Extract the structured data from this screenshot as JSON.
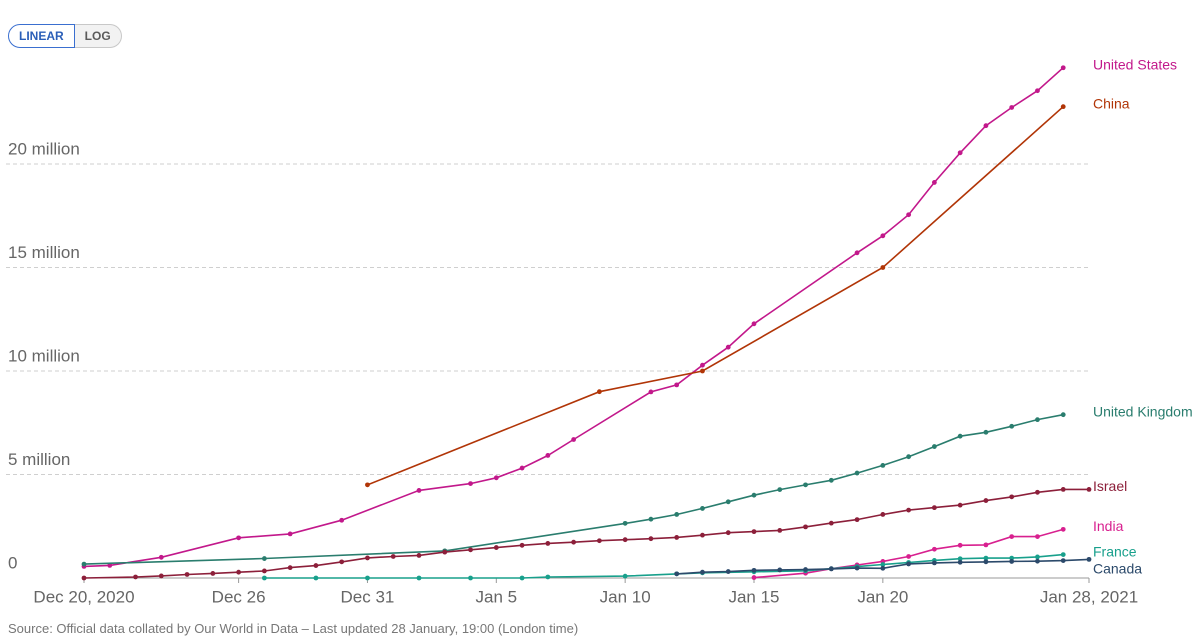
{
  "controls": {
    "linear": "LINEAR",
    "log": "LOG"
  },
  "chart_data": {
    "type": "line",
    "source": "Source: Official data collated by Our World in Data – Last updated 28 January, 19:00 (London time)",
    "xlim": [
      "2020-12-20",
      "2021-01-28"
    ],
    "xticks": [
      {
        "value": "2020-12-20",
        "label": "Dec 20, 2020"
      },
      {
        "value": "2020-12-26",
        "label": "Dec 26"
      },
      {
        "value": "2020-12-31",
        "label": "Dec 31"
      },
      {
        "value": "2021-01-05",
        "label": "Jan 5"
      },
      {
        "value": "2021-01-10",
        "label": "Jan 10"
      },
      {
        "value": "2021-01-15",
        "label": "Jan 15"
      },
      {
        "value": "2021-01-20",
        "label": "Jan 20"
      },
      {
        "value": "2021-01-28",
        "label": "Jan 28, 2021"
      }
    ],
    "ylim": [
      0,
      25000000
    ],
    "yticks": [
      0,
      {
        "value": 5000000,
        "label": "5 million"
      },
      {
        "value": 10000000,
        "label": "10 million"
      },
      {
        "value": 15000000,
        "label": "15 million"
      },
      {
        "value": 20000000,
        "label": "20 million"
      }
    ],
    "grid": true,
    "series": [
      {
        "name": "United States",
        "color": "#c2188b",
        "x": [
          "2020-12-20",
          "2020-12-21",
          "2020-12-23",
          "2020-12-26",
          "2020-12-28",
          "2020-12-30",
          "2021-01-02",
          "2021-01-04",
          "2021-01-05",
          "2021-01-06",
          "2021-01-07",
          "2021-01-08",
          "2021-01-11",
          "2021-01-12",
          "2021-01-13",
          "2021-01-14",
          "2021-01-15",
          "2021-01-19",
          "2021-01-20",
          "2021-01-21",
          "2021-01-22",
          "2021-01-23",
          "2021-01-24",
          "2021-01-25",
          "2021-01-26",
          "2021-01-27"
        ],
        "values": [
          560000,
          610000,
          1000000,
          1940000,
          2130000,
          2790000,
          4230000,
          4560000,
          4840000,
          5310000,
          5920000,
          6690000,
          8990000,
          9330000,
          10280000,
          11150000,
          12280000,
          15710000,
          16530000,
          17550000,
          19110000,
          20540000,
          21850000,
          22730000,
          23540000,
          24650000
        ]
      },
      {
        "name": "China",
        "color": "#b13507",
        "x": [
          "2020-12-31",
          "2021-01-09",
          "2021-01-13",
          "2021-01-20",
          "2021-01-27"
        ],
        "values": [
          4500000,
          9000000,
          10000000,
          15000000,
          22770000
        ]
      },
      {
        "name": "United Kingdom",
        "color": "#2a7d6e",
        "x": [
          "2020-12-20",
          "2020-12-27",
          "2021-01-03",
          "2021-01-10",
          "2021-01-11",
          "2021-01-12",
          "2021-01-13",
          "2021-01-14",
          "2021-01-15",
          "2021-01-16",
          "2021-01-17",
          "2021-01-18",
          "2021-01-19",
          "2021-01-20",
          "2021-01-21",
          "2021-01-22",
          "2021-01-23",
          "2021-01-24",
          "2021-01-25",
          "2021-01-26",
          "2021-01-27"
        ],
        "values": [
          670000,
          940000,
          1310000,
          2640000,
          2840000,
          3070000,
          3360000,
          3680000,
          4000000,
          4270000,
          4500000,
          4720000,
          5070000,
          5440000,
          5860000,
          6350000,
          6850000,
          7040000,
          7330000,
          7650000,
          7890000
        ]
      },
      {
        "name": "Israel",
        "color": "#8c1f3a",
        "x": [
          "2020-12-20",
          "2020-12-22",
          "2020-12-23",
          "2020-12-24",
          "2020-12-25",
          "2020-12-26",
          "2020-12-27",
          "2020-12-28",
          "2020-12-29",
          "2020-12-30",
          "2020-12-31",
          "2021-01-01",
          "2021-01-02",
          "2021-01-03",
          "2021-01-04",
          "2021-01-05",
          "2021-01-06",
          "2021-01-07",
          "2021-01-08",
          "2021-01-09",
          "2021-01-10",
          "2021-01-11",
          "2021-01-12",
          "2021-01-13",
          "2021-01-14",
          "2021-01-15",
          "2021-01-16",
          "2021-01-17",
          "2021-01-18",
          "2021-01-19",
          "2021-01-20",
          "2021-01-21",
          "2021-01-22",
          "2021-01-23",
          "2021-01-24",
          "2021-01-25",
          "2021-01-26",
          "2021-01-27",
          "2021-01-28"
        ],
        "values": [
          0,
          50000,
          100000,
          170000,
          220000,
          280000,
          340000,
          500000,
          600000,
          780000,
          970000,
          1040000,
          1090000,
          1250000,
          1360000,
          1470000,
          1580000,
          1670000,
          1730000,
          1800000,
          1850000,
          1900000,
          1960000,
          2070000,
          2190000,
          2240000,
          2300000,
          2470000,
          2650000,
          2820000,
          3070000,
          3280000,
          3400000,
          3520000,
          3740000,
          3920000,
          4140000,
          4280000,
          4280000
        ]
      },
      {
        "name": "India",
        "color": "#d8208f",
        "x": [
          "2021-01-15",
          "2021-01-17",
          "2021-01-18",
          "2021-01-19",
          "2021-01-20",
          "2021-01-21",
          "2021-01-22",
          "2021-01-23",
          "2021-01-24",
          "2021-01-25",
          "2021-01-26",
          "2021-01-27"
        ],
        "values": [
          20000,
          230000,
          450000,
          630000,
          800000,
          1040000,
          1390000,
          1580000,
          1600000,
          2000000,
          2000000,
          2350000
        ]
      },
      {
        "name": "France",
        "color": "#18a08c",
        "x": [
          "2020-12-27",
          "2020-12-29",
          "2020-12-31",
          "2021-01-02",
          "2021-01-04",
          "2021-01-06",
          "2021-01-07",
          "2021-01-10",
          "2021-01-12",
          "2021-01-13",
          "2021-01-15",
          "2021-01-17",
          "2021-01-18",
          "2021-01-19",
          "2021-01-20",
          "2021-01-21",
          "2021-01-22",
          "2021-01-23",
          "2021-01-24",
          "2021-01-25",
          "2021-01-26",
          "2021-01-27"
        ],
        "values": [
          0,
          0,
          0,
          0,
          0,
          0,
          50000,
          90000,
          200000,
          250000,
          300000,
          350000,
          450000,
          550000,
          650000,
          750000,
          850000,
          930000,
          960000,
          960000,
          1020000,
          1130000
        ]
      },
      {
        "name": "Canada",
        "color": "#2c4a6b",
        "x": [
          "2021-01-12",
          "2021-01-13",
          "2021-01-14",
          "2021-01-15",
          "2021-01-16",
          "2021-01-17",
          "2021-01-18",
          "2021-01-19",
          "2021-01-20",
          "2021-01-21",
          "2021-01-22",
          "2021-01-23",
          "2021-01-24",
          "2021-01-25",
          "2021-01-26",
          "2021-01-27",
          "2021-01-28"
        ],
        "values": [
          200000,
          280000,
          310000,
          370000,
          390000,
          410000,
          440000,
          480000,
          470000,
          680000,
          730000,
          760000,
          780000,
          800000,
          810000,
          840000,
          900000
        ]
      }
    ]
  }
}
